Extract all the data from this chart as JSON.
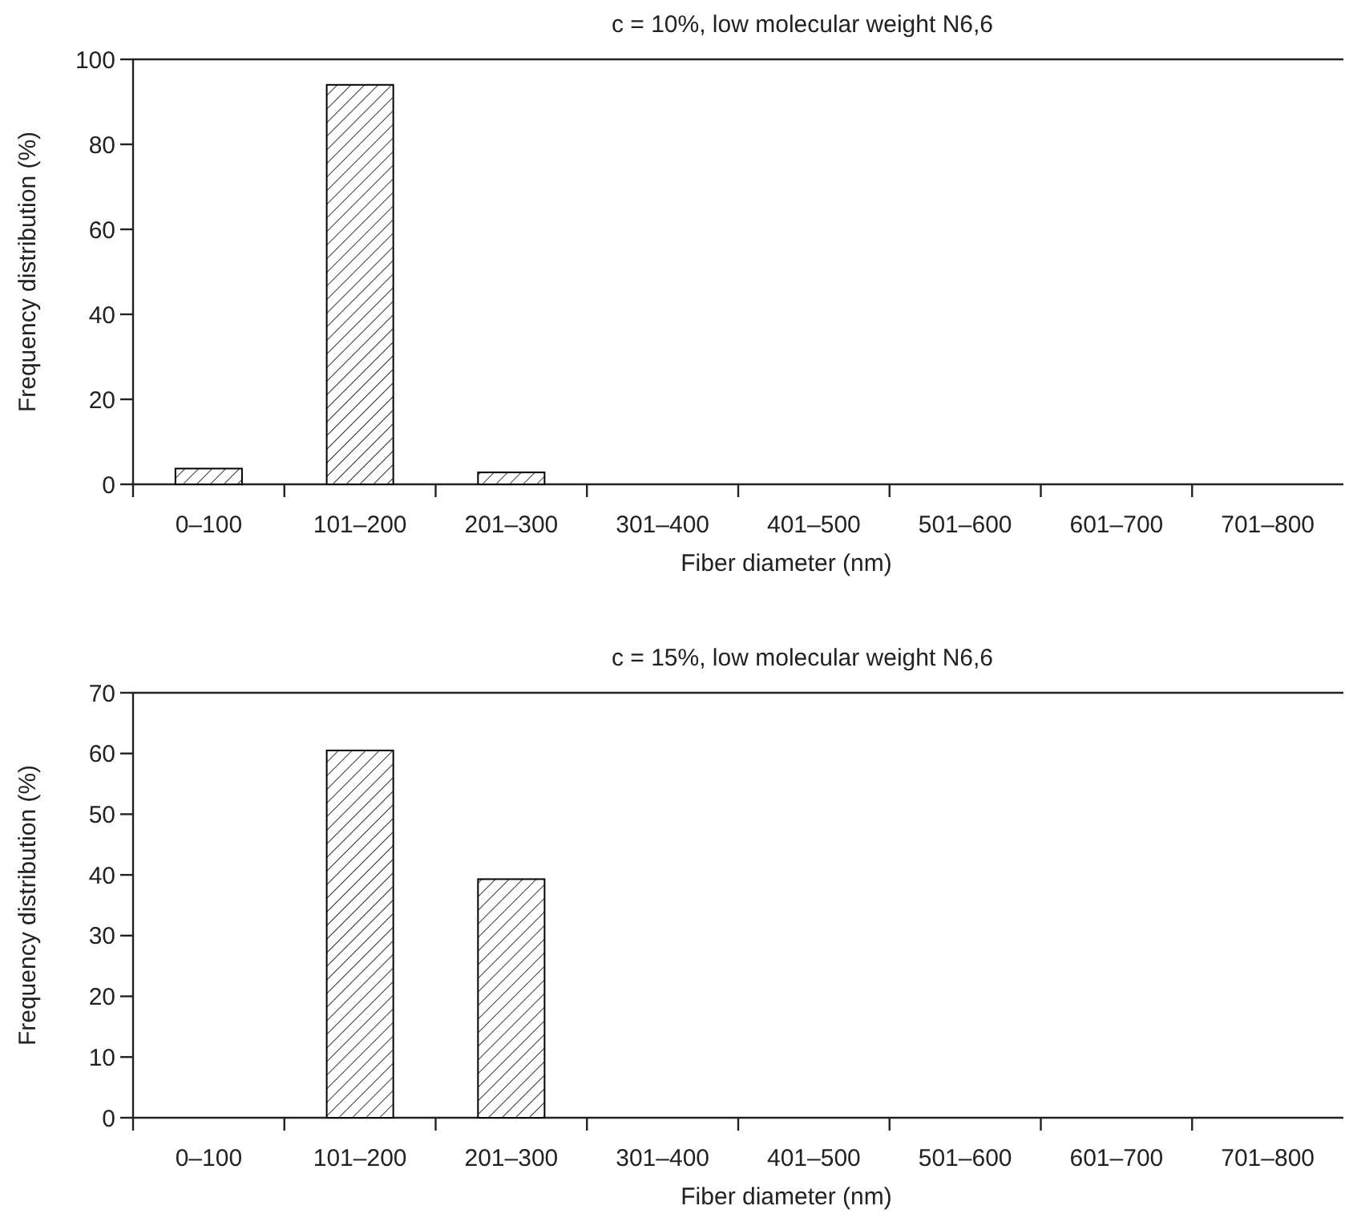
{
  "chart_data": [
    {
      "type": "bar",
      "title": "c = 10%, low molecular weight N6,6",
      "xlabel": "Fiber diameter (nm)",
      "ylabel": "Frequency distribution (%)",
      "categories": [
        "0–100",
        "101–200",
        "201–300",
        "301–400",
        "401–500",
        "501–600",
        "601–700",
        "701–800"
      ],
      "values": [
        3.7,
        94,
        2.8,
        0,
        0,
        0,
        0,
        0
      ],
      "color": "#000000",
      "ylim": [
        0,
        100
      ],
      "yticks": [
        0,
        20,
        40,
        60,
        80,
        100
      ]
    },
    {
      "type": "bar",
      "title": "c = 15%, low molecular weight N6,6",
      "xlabel": "Fiber diameter (nm)",
      "ylabel": "Frequency distribution (%)",
      "categories": [
        "0–100",
        "101–200",
        "201–300",
        "301–400",
        "401–500",
        "501–600",
        "601–700",
        "701–800"
      ],
      "values": [
        0,
        60.5,
        39.3,
        0,
        0,
        0,
        0,
        0
      ],
      "color": "#000000",
      "ylim": [
        0,
        70
      ],
      "yticks": [
        0,
        10,
        20,
        30,
        40,
        50,
        60,
        70
      ]
    }
  ]
}
